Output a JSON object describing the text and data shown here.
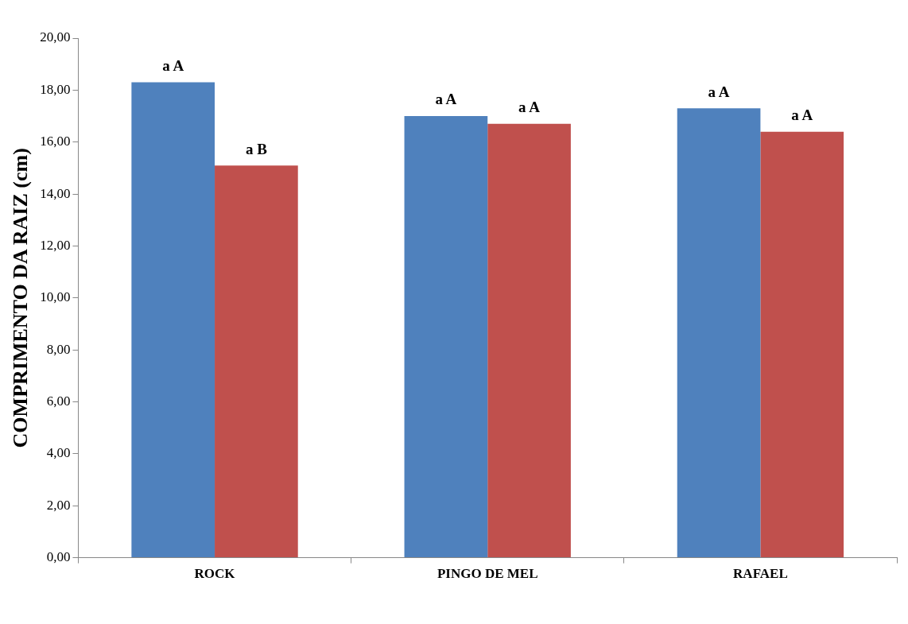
{
  "chart_data": {
    "type": "bar",
    "ylabel": "COMPRIMENTO DA RAIZ (cm)",
    "categories": [
      "ROCK",
      "PINGO DE MEL",
      "RAFAEL"
    ],
    "series": [
      {
        "color": "#4f81bd",
        "values": [
          18.3,
          17.0,
          17.3
        ]
      },
      {
        "color": "#c0504d",
        "values": [
          15.1,
          16.7,
          16.4
        ]
      }
    ],
    "ylim": [
      0,
      20
    ],
    "yticks": [
      {
        "value": 0,
        "label": "0,00"
      },
      {
        "value": 2,
        "label": "2,00"
      },
      {
        "value": 4,
        "label": "4,00"
      },
      {
        "value": 6,
        "label": "6,00"
      },
      {
        "value": 8,
        "label": "8,00"
      },
      {
        "value": 10,
        "label": "10,00"
      },
      {
        "value": 12,
        "label": "12,00"
      },
      {
        "value": 14,
        "label": "14,00"
      },
      {
        "value": 16,
        "label": "16,00"
      },
      {
        "value": 18,
        "label": "18,00"
      },
      {
        "value": 20,
        "label": "20,00"
      }
    ],
    "grid": false,
    "legend": false,
    "annotations": [
      {
        "text": "a A",
        "x": "ROCK",
        "y": 18.3
      },
      {
        "text": "a B",
        "x": "ROCK",
        "y": 15.1
      },
      {
        "text": "a A",
        "x": "PINGO DE MEL",
        "y": 17.0
      },
      {
        "text": "a A",
        "x": "PINGO DE MEL",
        "y": 16.7
      },
      {
        "text": "a A",
        "x": "RAFAEL",
        "y": 17.3
      },
      {
        "text": "a A",
        "x": "RAFAEL",
        "y": 16.4
      }
    ]
  }
}
